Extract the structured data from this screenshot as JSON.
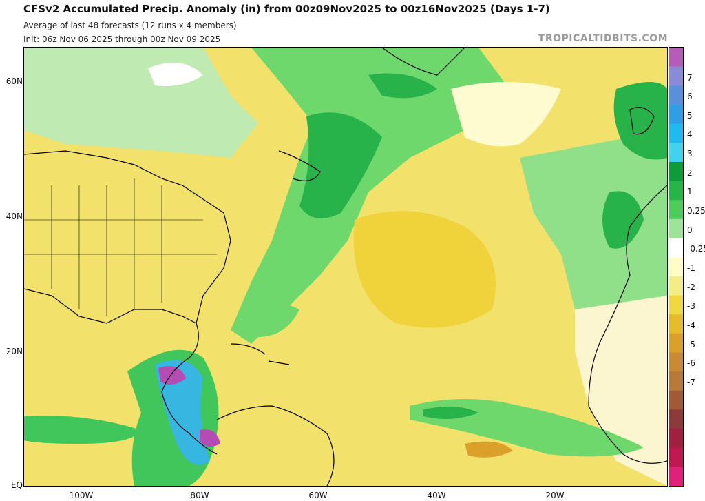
{
  "header": {
    "title": "CFSv2 Accumulated Precip. Anomaly (in) from 00z09Nov2025 to 00z16Nov2025 (Days 1-7)",
    "subtitle1": "Average of last 48 forecasts (12 runs x 4 members)",
    "subtitle2": "Init: 06z Nov 06 2025 through 00z Nov 09 2025",
    "brand": "TROPICALTIDBITS.COM"
  },
  "axes": {
    "lat_labels": [
      "60N",
      "40N",
      "20N",
      "EQ"
    ],
    "lon_labels": [
      "100W",
      "80W",
      "60W",
      "40W",
      "20W"
    ]
  },
  "colorbar": {
    "labels": [
      "7",
      "6",
      "5",
      "4",
      "3",
      "2",
      "1",
      "0.25",
      "0",
      "-0.25",
      "-1",
      "-2",
      "-3",
      "-4",
      "-5",
      "-6",
      "-7"
    ],
    "colors": [
      "#b55cb8",
      "#8a8ad6",
      "#5a8fdc",
      "#2f9ee6",
      "#1fbbf0",
      "#41d3ee",
      "#0e9b3a",
      "#27b449",
      "#4ccd5b",
      "#9fe39a",
      "#ffffff",
      "#fffcc8",
      "#f4ec84",
      "#f0d840",
      "#e7bc2a",
      "#d9a02a",
      "#c98a36",
      "#b87a3a",
      "#a05a38",
      "#8c3a3a",
      "#a02040",
      "#c01850",
      "#e0207a"
    ]
  },
  "legend_icons": [
    "coastline-shape",
    "state-border-shape"
  ]
}
